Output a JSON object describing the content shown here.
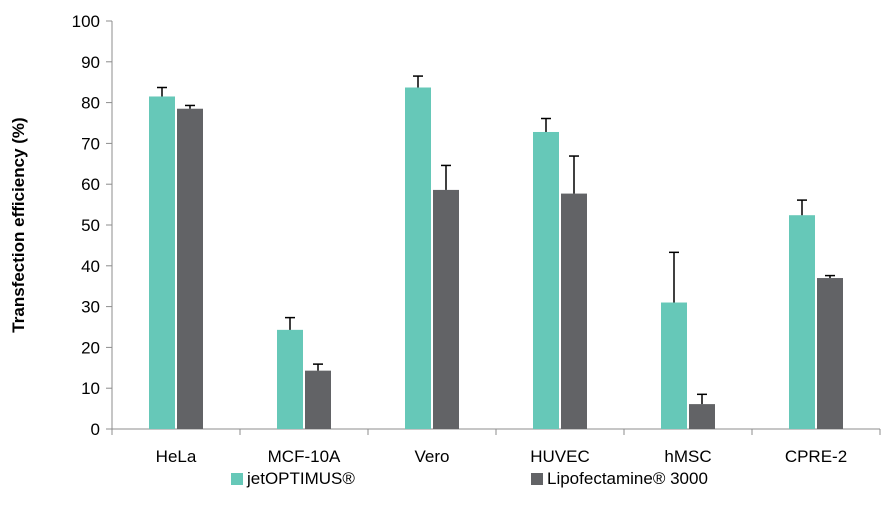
{
  "chart_data": {
    "type": "bar",
    "title": "",
    "xlabel": "",
    "ylabel": "Transfection efficiency (%)",
    "ylim": [
      0,
      100
    ],
    "yticks": [
      0,
      10,
      20,
      30,
      40,
      50,
      60,
      70,
      80,
      90,
      100
    ],
    "grid": false,
    "legend_position": "bottom",
    "categories": [
      "HeLa",
      "MCF-10A",
      "Vero",
      "HUVEC",
      "hMSC",
      "CPRE-2"
    ],
    "series": [
      {
        "name": "jetOPTIMUS®",
        "color": "#66c8b8",
        "values": [
          81.5,
          24.3,
          83.7,
          72.8,
          31.0,
          52.4
        ],
        "error": [
          2.2,
          3.0,
          2.8,
          3.3,
          12.3,
          3.7
        ]
      },
      {
        "name": "Lipofectamine® 3000",
        "color": "#626366",
        "values": [
          78.5,
          14.3,
          58.6,
          57.7,
          6.1,
          37.0
        ],
        "error": [
          0.8,
          1.6,
          6.0,
          9.2,
          2.4,
          0.6
        ]
      }
    ]
  }
}
